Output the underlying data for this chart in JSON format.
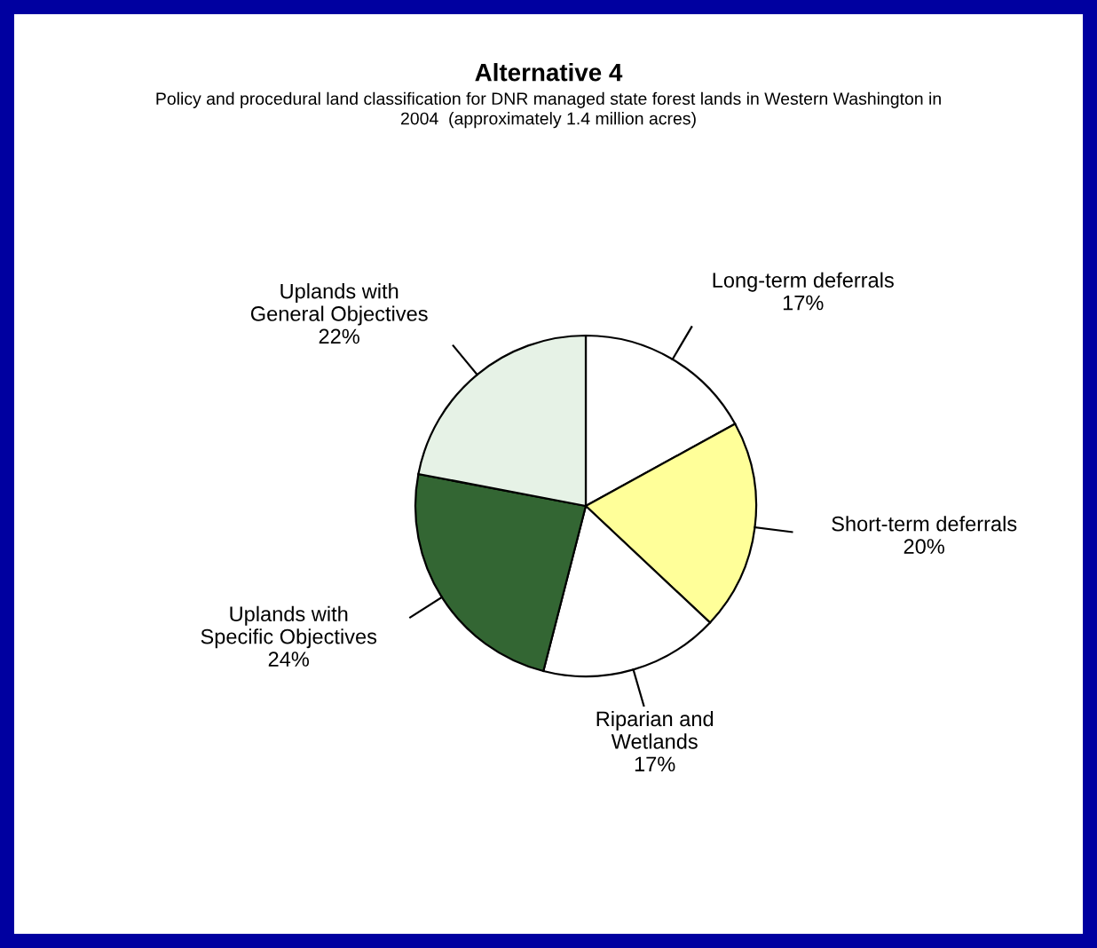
{
  "chart_data": {
    "type": "pie",
    "title": "Alternative 4",
    "subtitle": "Policy and procedural land classification for DNR managed state forest lands in Western Washington in\n2004  (approximately 1.4 million acres)",
    "categories": [
      "Long-term deferrals",
      "Short-term deferrals",
      "Riparian and\nWetlands",
      "Uplands with\nSpecific Objectives",
      "Uplands with\nGeneral Objectives"
    ],
    "values": [
      17,
      20,
      17,
      24,
      22
    ],
    "colors": [
      "#ffffff",
      "#ffff99",
      "#ffffff",
      "#336633",
      "#e6f2e6"
    ],
    "value_labels": [
      "17%",
      "20%",
      "17%",
      "24%",
      "22%"
    ]
  }
}
